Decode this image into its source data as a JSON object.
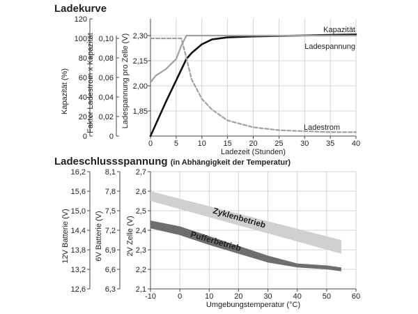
{
  "headings": {
    "charge_curve": "Ladekurve",
    "end_voltage": "Ladeschlussspannung",
    "end_voltage_sub": "(in Abhängigkeit der Temperatur)"
  },
  "chart_data": [
    {
      "type": "line",
      "title": "Ladekurve",
      "xlabel": "Ladezeit (Stunden)",
      "xlim": [
        0,
        40
      ],
      "x_ticks": [
        "0",
        "5",
        "10",
        "15",
        "20",
        "25",
        "30",
        "35",
        "40"
      ],
      "axes": {
        "capacity": {
          "label": "Kapazität (%)",
          "ticks": [
            "0",
            "20",
            "40",
            "60",
            "80",
            "100",
            "120"
          ],
          "ylim": [
            0,
            120
          ]
        },
        "current_factor": {
          "label": "Faktor Ladestrom x Kapazität",
          "ticks": [
            "0",
            "0,02",
            "0,04",
            "0,06",
            "0,08",
            "0,10"
          ],
          "ylim": [
            0,
            0.1
          ]
        },
        "cell_voltage": {
          "label": "Ladespannung pro Zelle (V)",
          "ticks": [
            "2,00",
            "2,15",
            "2,30"
          ],
          "ylim": [
            1.7,
            2.4
          ],
          "tick_values": [
            1.85,
            2.0,
            2.15,
            2.3
          ],
          "tick_labels": [
            "1,85",
            "2,00",
            "2,15",
            "2,30"
          ]
        }
      },
      "series": [
        {
          "name": "Kapazität",
          "axis": "capacity",
          "color": "#111111",
          "style": "solid",
          "x": [
            0,
            3,
            5,
            7,
            8,
            10,
            12,
            15,
            20,
            25,
            30,
            35,
            40
          ],
          "y": [
            0,
            35,
            57,
            79,
            85,
            94,
            99,
            101,
            102,
            102.5,
            103,
            103.5,
            104
          ]
        },
        {
          "name": "Ladespannung",
          "axis": "cell_voltage",
          "color": "#a0a0a0",
          "style": "solid",
          "x": [
            0,
            1,
            3,
            5,
            6,
            7,
            40
          ],
          "y": [
            2.02,
            2.06,
            2.1,
            2.16,
            2.24,
            2.3,
            2.3
          ]
        },
        {
          "name": "Ladestrom",
          "axis": "current_factor",
          "color": "#a0a0a0",
          "style": "dashed",
          "x": [
            0,
            6,
            7,
            8,
            10,
            12,
            15,
            20,
            25,
            30,
            35,
            40
          ],
          "y": [
            0.1,
            0.1,
            0.08,
            0.058,
            0.038,
            0.027,
            0.016,
            0.009,
            0.006,
            0.005,
            0.004,
            0.004
          ]
        }
      ]
    },
    {
      "type": "area",
      "title": "Ladeschlussspannung",
      "subtitle": "(in Abhängigkeit der Temperatur)",
      "xlabel": "Umgebungstemperatur (°C)",
      "xlim": [
        -10,
        60
      ],
      "x_ticks": [
        "-10",
        "0",
        "10",
        "20",
        "30",
        "40",
        "50",
        "60"
      ],
      "axes": {
        "battery_12v": {
          "label": "12V Batterie (V)",
          "ticks": [
            "12,6",
            "13,2",
            "13,8",
            "14,4",
            "15,0",
            "15,6",
            "16,2"
          ]
        },
        "battery_6v": {
          "label": "6V Batterie (V)",
          "ticks": [
            "6,3",
            "6,6",
            "6,9",
            "7,2",
            "7,5",
            "7,8",
            "8,1"
          ]
        },
        "cell": {
          "label": "2V Zelle (V)",
          "ticks": [
            "2,1",
            "2,2",
            "2,3",
            "2,4",
            "2,5",
            "2,6",
            "2,7"
          ],
          "ylim": [
            2.1,
            2.7
          ]
        }
      },
      "series": [
        {
          "name": "Zyklenbetrieb",
          "color": "#d0d0d0",
          "x": [
            -10,
            55
          ],
          "upper": [
            2.6,
            2.35
          ],
          "lower": [
            2.55,
            2.28
          ]
        },
        {
          "name": "Pufferbetrieb",
          "color": "#6e6e6e",
          "x": [
            -10,
            0,
            10,
            20,
            30,
            40,
            50,
            55
          ],
          "upper": [
            2.45,
            2.42,
            2.37,
            2.32,
            2.27,
            2.23,
            2.22,
            2.21
          ],
          "lower": [
            2.41,
            2.375,
            2.325,
            2.28,
            2.235,
            2.21,
            2.2,
            2.19
          ]
        }
      ]
    }
  ]
}
